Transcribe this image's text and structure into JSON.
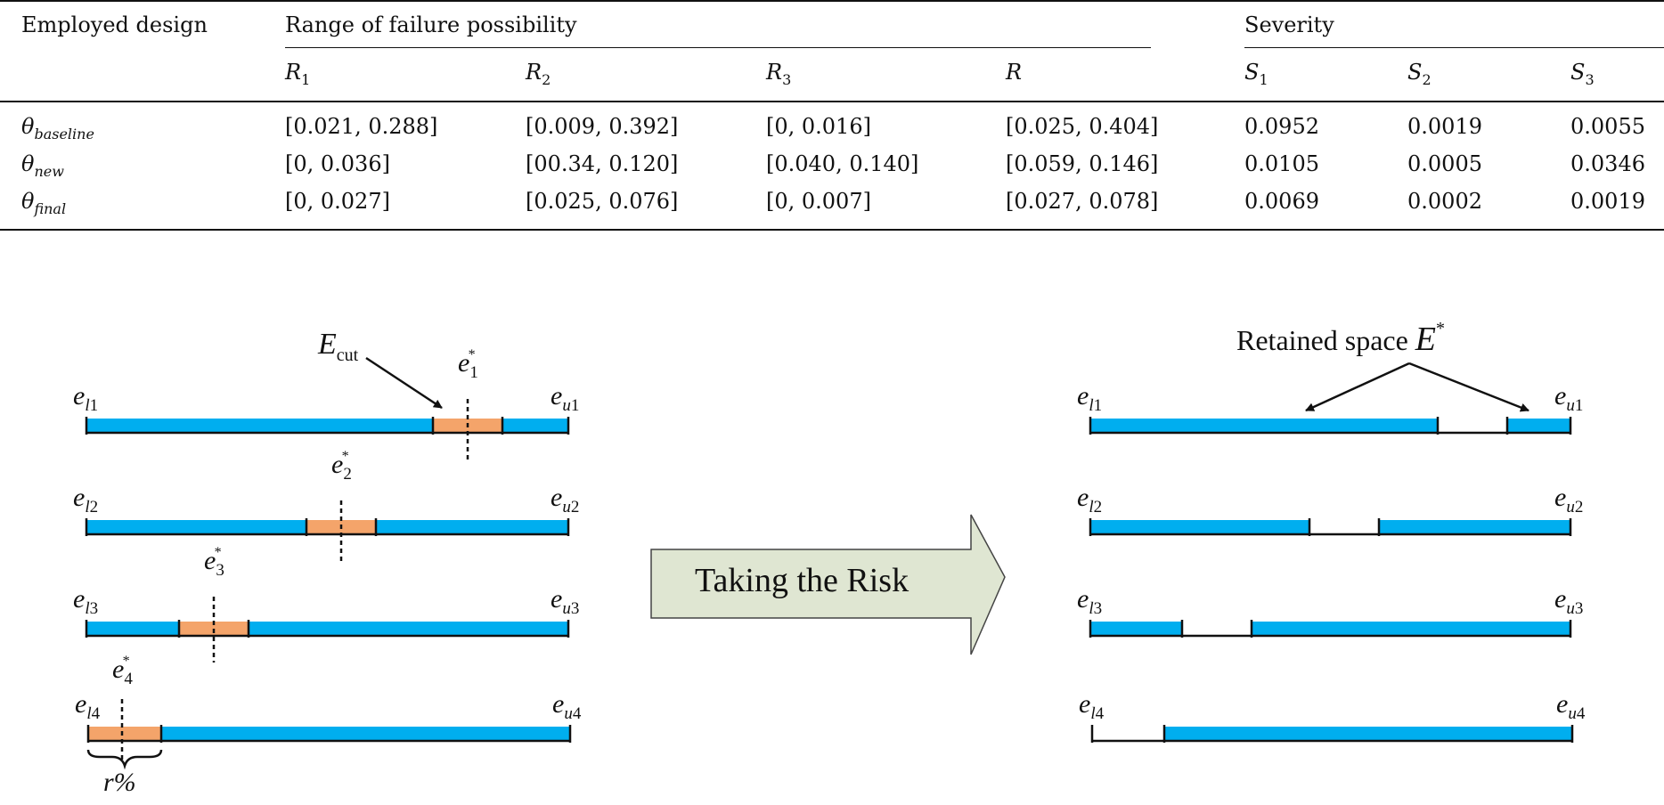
{
  "table": {
    "col_employed": "Employed design",
    "group_range": "Range of failure possibility",
    "group_severity": "Severity",
    "range_cols": [
      {
        "sym": "R",
        "sub": "1"
      },
      {
        "sym": "R",
        "sub": "2"
      },
      {
        "sym": "R",
        "sub": "3"
      },
      {
        "sym": "R",
        "sub": ""
      }
    ],
    "sev_cols": [
      {
        "sym": "S",
        "sub": "1"
      },
      {
        "sym": "S",
        "sub": "2"
      },
      {
        "sym": "S",
        "sub": "3"
      }
    ],
    "rows": [
      {
        "sym": "θ",
        "sub": "baseline",
        "cells": [
          "[0.021, 0.288]",
          "[0.009, 0.392]",
          "[0, 0.016]",
          "[0.025, 0.404]",
          "0.0952",
          "0.0019",
          "0.0055"
        ]
      },
      {
        "sym": "θ",
        "sub": "new",
        "cells": [
          "[0, 0.036]",
          "[00.34, 0.120]",
          "[0.040, 0.140]",
          "[0.059, 0.146]",
          "0.0105",
          "0.0005",
          "0.0346"
        ]
      },
      {
        "sym": "θ",
        "sub": "final",
        "cells": [
          "[0, 0.027]",
          "[0.025, 0.076]",
          "[0, 0.007]",
          "[0.027, 0.078]",
          "0.0069",
          "0.0002",
          "0.0019"
        ]
      }
    ]
  },
  "figure": {
    "colors": {
      "bar": "#00aeef",
      "cut": "#f4a46a",
      "arrow_fill": "#dfe6d2",
      "line": "#111111"
    },
    "arrow_text": "Taking the Risk",
    "ecut_label": {
      "sym": "E",
      "sub": "cut"
    },
    "retained_label": {
      "text": "Retained space",
      "sym": "E",
      "sup": "*"
    },
    "r_label": "r%",
    "left_bars": [
      {
        "lower": {
          "sym": "e",
          "sub": "l",
          "num": "1"
        },
        "upper": {
          "sym": "e",
          "sub": "u",
          "num": "1"
        },
        "star": {
          "sym": "e",
          "num": "1",
          "sup": "*"
        }
      },
      {
        "lower": {
          "sym": "e",
          "sub": "l",
          "num": "2"
        },
        "upper": {
          "sym": "e",
          "sub": "u",
          "num": "2"
        },
        "star": {
          "sym": "e",
          "num": "2",
          "sup": "*"
        }
      },
      {
        "lower": {
          "sym": "e",
          "sub": "l",
          "num": "3"
        },
        "upper": {
          "sym": "e",
          "sub": "u",
          "num": "3"
        },
        "star": {
          "sym": "e",
          "num": "3",
          "sup": "*"
        }
      },
      {
        "lower": {
          "sym": "e",
          "sub": "l",
          "num": "4"
        },
        "upper": {
          "sym": "e",
          "sub": "u",
          "num": "4"
        },
        "star": {
          "sym": "e",
          "num": "4",
          "sup": "*"
        }
      }
    ],
    "right_bars": [
      {
        "lower": {
          "sym": "e",
          "sub": "l",
          "num": "1"
        },
        "upper": {
          "sym": "e",
          "sub": "u",
          "num": "1"
        }
      },
      {
        "lower": {
          "sym": "e",
          "sub": "l",
          "num": "2"
        },
        "upper": {
          "sym": "e",
          "sub": "u",
          "num": "2"
        }
      },
      {
        "lower": {
          "sym": "e",
          "sub": "l",
          "num": "3"
        },
        "upper": {
          "sym": "e",
          "sub": "u",
          "num": "3"
        }
      },
      {
        "lower": {
          "sym": "e",
          "sub": "l",
          "num": "4"
        },
        "upper": {
          "sym": "e",
          "sub": "u",
          "num": "4"
        }
      }
    ]
  }
}
